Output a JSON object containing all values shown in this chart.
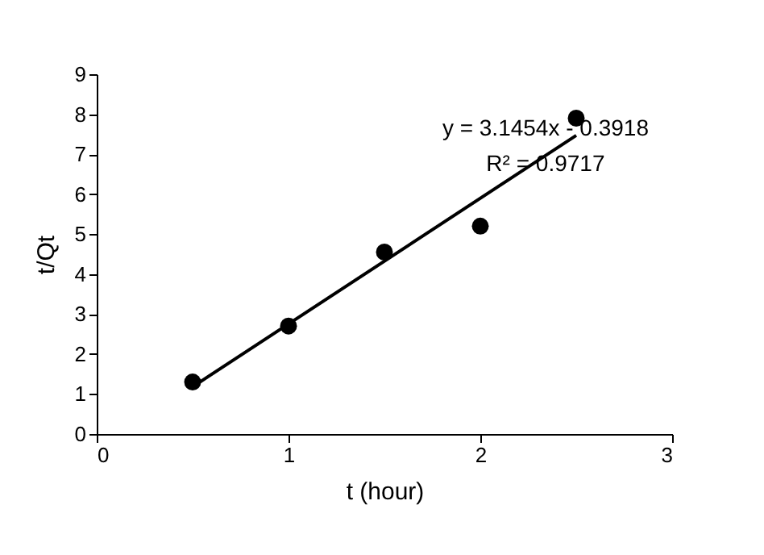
{
  "chart_data": {
    "type": "scatter",
    "xlabel": "t (hour)",
    "ylabel": "t/Qt",
    "xlim": [
      0,
      3
    ],
    "xticks": [
      0,
      1,
      2,
      3
    ],
    "ylim": [
      0,
      9
    ],
    "yticks": [
      0,
      1,
      2,
      3,
      4,
      5,
      6,
      7,
      8,
      9
    ],
    "series": [
      {
        "type": "line",
        "color": "#000000",
        "line_style": "solid",
        "x": [
          0.5,
          2.5
        ],
        "values": [
          1.18,
          7.47
        ]
      },
      {
        "type": "scatter",
        "color": "#000000",
        "marker": "circle",
        "x": [
          0.5,
          1,
          1.5,
          2,
          2.5
        ],
        "values": [
          1.3,
          2.7,
          4.55,
          5.2,
          7.9
        ]
      }
    ],
    "annotations": [
      "y = 3.1454x - 0.3918",
      "R² = 0.9717"
    ],
    "grid": false
  }
}
